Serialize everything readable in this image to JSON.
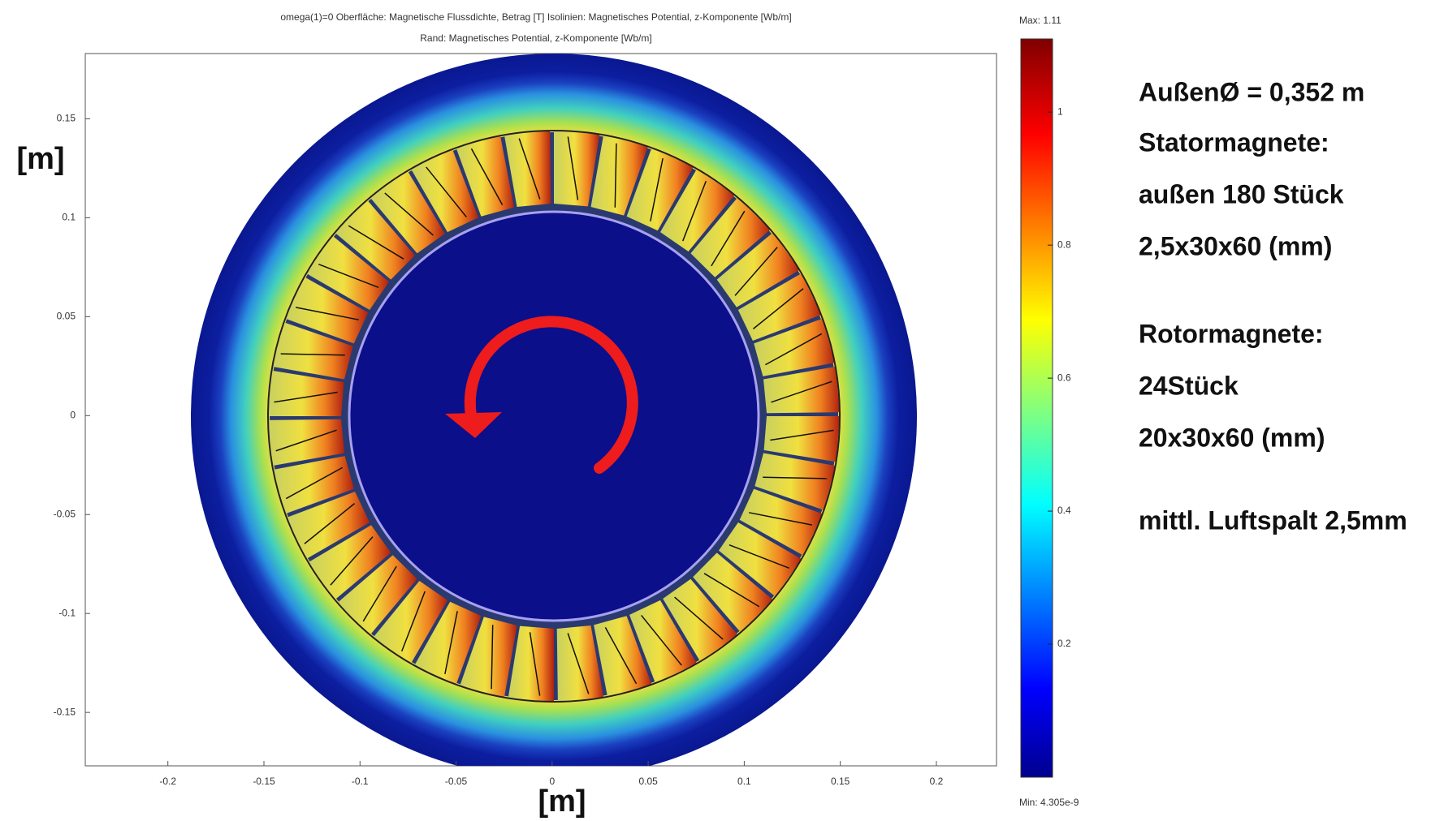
{
  "chart_data": {
    "type": "field",
    "title": "omega(1)=0    Oberfläche: Magnetische Flussdichte, Betrag [T]   Isolinien: Magnetisches Potential, z-Komponente [Wb/m]",
    "subtitle": "Rand: Magnetisches Potential, z-Komponente [Wb/m]",
    "x_label": "[m]",
    "y_label": "[m]",
    "xlim": [
      -0.243,
      0.2313
    ],
    "xticks": [
      -0.2,
      -0.15,
      -0.1,
      -0.05,
      0,
      0.05,
      0.1,
      0.15,
      0.2
    ],
    "ylim": [
      -0.177,
      0.183
    ],
    "yticks": [
      -0.15,
      -0.1,
      -0.05,
      0,
      0.05,
      0.1,
      0.15
    ],
    "colorbar": {
      "lim": [
        0,
        1.11
      ],
      "ticks": [
        0.2,
        0.4,
        0.6,
        0.8,
        1
      ],
      "max_label": "Max: 1.11",
      "min_label": "Min: 4.305e-9"
    },
    "annotations": [
      "AußenØ = 0,352 m",
      "Statormagnete:",
      "außen 180 Stück",
      "2,5x30x60 (mm)",
      "Rotormagnete:",
      "24Stück",
      "20x30x60 (mm)",
      "mittl. Luftspalt 2,5mm"
    ]
  }
}
